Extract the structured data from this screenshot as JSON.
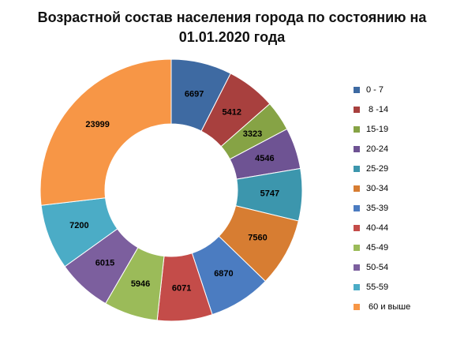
{
  "chart_data": {
    "type": "pie",
    "title_lines": [
      "Возрастной состав населения города по состоянию на",
      "01.01.2020 года"
    ],
    "categories": [
      "0 - 7",
      " 8 -14",
      "15-19",
      "20-24",
      "25-29",
      "30-34",
      "35-39",
      "40-44",
      "45-49",
      "50-54",
      "55-59",
      " 60 и выше"
    ],
    "values": [
      6697,
      5412,
      3323,
      4546,
      5747,
      7560,
      6870,
      6071,
      5946,
      6015,
      7200,
      23999
    ],
    "colors": [
      "#3E6AA2",
      "#A8403E",
      "#86A345",
      "#6E5393",
      "#3C96AD",
      "#D77D32",
      "#4B7CC1",
      "#C44C49",
      "#9BBB59",
      "#7C5F9E",
      "#4BACC6",
      "#F79646"
    ],
    "donut": true,
    "legend_position": "right"
  }
}
